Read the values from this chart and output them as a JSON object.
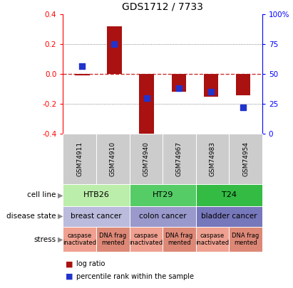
{
  "title": "GDS1712 / 7733",
  "samples": [
    "GSM74911",
    "GSM74910",
    "GSM74940",
    "GSM74967",
    "GSM74983",
    "GSM74954"
  ],
  "log_ratio": [
    -0.01,
    0.32,
    -0.43,
    -0.12,
    -0.15,
    -0.14
  ],
  "percentile_rank_raw": [
    57,
    75,
    30,
    38,
    35,
    22
  ],
  "ylim": [
    -0.4,
    0.4
  ],
  "y2lim": [
    0,
    100
  ],
  "yticks": [
    -0.4,
    -0.2,
    0.0,
    0.2,
    0.4
  ],
  "y2ticks": [
    0,
    25,
    50,
    75,
    100
  ],
  "bar_color": "#aa1111",
  "dot_color": "#2233cc",
  "zero_line_color": "#cc3333",
  "grid_color": "#666666",
  "cell_line_data": [
    {
      "label": "HTB26",
      "span": [
        0,
        2
      ],
      "color": "#bbeeaa"
    },
    {
      "label": "HT29",
      "span": [
        2,
        4
      ],
      "color": "#55cc66"
    },
    {
      "label": "T24",
      "span": [
        4,
        6
      ],
      "color": "#33bb44"
    }
  ],
  "disease_data": [
    {
      "label": "breast cancer",
      "span": [
        0,
        2
      ],
      "color": "#bbbbdd"
    },
    {
      "label": "colon cancer",
      "span": [
        2,
        4
      ],
      "color": "#9999cc"
    },
    {
      "label": "bladder cancer",
      "span": [
        4,
        6
      ],
      "color": "#7777bb"
    }
  ],
  "stress_data": [
    {
      "label": "caspase\ninactivated",
      "col": 0,
      "color": "#f0a090"
    },
    {
      "label": "DNA frag\nmented",
      "col": 1,
      "color": "#dd8877"
    },
    {
      "label": "caspase\ninactivated",
      "col": 2,
      "color": "#f0a090"
    },
    {
      "label": "DNA frag\nmented",
      "col": 3,
      "color": "#dd8877"
    },
    {
      "label": "caspase\ninactivated",
      "col": 4,
      "color": "#f0a090"
    },
    {
      "label": "DNA frag\nmented",
      "col": 5,
      "color": "#dd8877"
    }
  ],
  "row_labels": [
    "cell line",
    "disease state",
    "stress"
  ],
  "legend_items": [
    {
      "label": "log ratio",
      "color": "#aa1111"
    },
    {
      "label": "percentile rank within the sample",
      "color": "#2233cc"
    }
  ]
}
